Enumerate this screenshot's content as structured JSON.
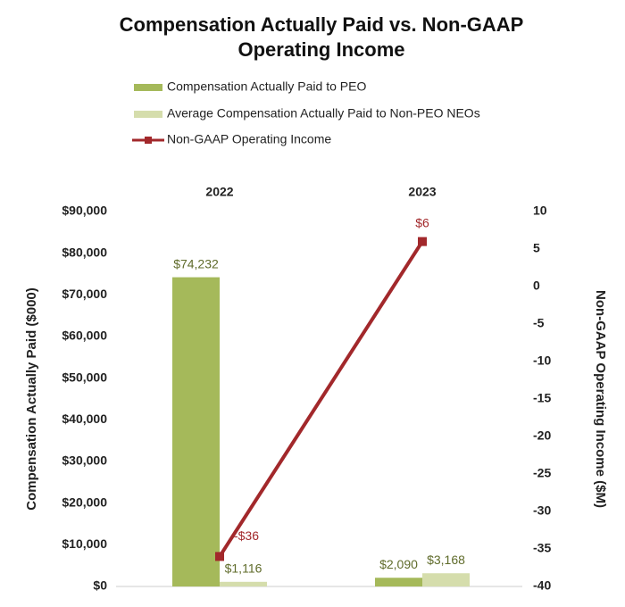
{
  "chart_data": {
    "type": "bar-line",
    "title": "Compensation Actually Paid vs. Non-GAAP Operating Income",
    "y_label": "Compensation Actually Paid ($000)",
    "y2_label": "Non-GAAP Operating Income ($M)",
    "categories": [
      "2022",
      "2023"
    ],
    "series": [
      {
        "name": "Compensation Actually Paid to PEO",
        "type": "bar",
        "color": "#a5b95a",
        "axis": "y",
        "values": [
          74232,
          2090
        ],
        "value_labels": [
          "$74,232",
          "$2,090"
        ]
      },
      {
        "name": "Average Compensation Actually Paid to Non-PEO NEOs",
        "type": "bar",
        "color": "#d5ddac",
        "axis": "y",
        "values": [
          1116,
          3168
        ],
        "value_labels": [
          "$1,116",
          "$3,168"
        ]
      },
      {
        "name": "Non-GAAP Operating Income",
        "type": "line",
        "color": "#a2282b",
        "axis": "y2",
        "values": [
          -36,
          6
        ],
        "value_labels": [
          "-$36",
          "$6"
        ]
      }
    ],
    "ylim": [
      0,
      90000
    ],
    "yticks": [
      {
        "value": 0,
        "label": "$0"
      },
      {
        "value": 10000,
        "label": "$10,000"
      },
      {
        "value": 20000,
        "label": "$20,000"
      },
      {
        "value": 30000,
        "label": "$30,000"
      },
      {
        "value": 40000,
        "label": "$40,000"
      },
      {
        "value": 50000,
        "label": "$50,000"
      },
      {
        "value": 60000,
        "label": "$60,000"
      },
      {
        "value": 70000,
        "label": "$70,000"
      },
      {
        "value": 80000,
        "label": "$80,000"
      },
      {
        "value": 90000,
        "label": "$90,000"
      }
    ],
    "y2lim": [
      -40,
      10
    ],
    "y2ticks": [
      -40,
      -35,
      -30,
      -25,
      -20,
      -15,
      -10,
      -5,
      0,
      5,
      10
    ],
    "grid": false
  }
}
